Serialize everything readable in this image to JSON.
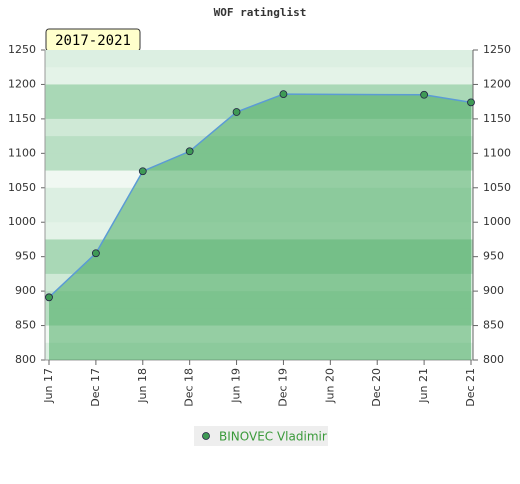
{
  "chart_data": {
    "type": "line",
    "title": "WOF ratinglist",
    "badge": "2017-2021",
    "categories": [
      "Jun 17",
      "Dec 17",
      "Jun 18",
      "Dec 18",
      "Jun 19",
      "Dec 19",
      "Jun 20",
      "Dec 20",
      "Jun 21",
      "Dec 21"
    ],
    "series": [
      {
        "name": "BINOVEC Vladimir",
        "color": "#5b9bd5",
        "marker_color": "#3f9a55",
        "values": [
          891,
          955,
          1074,
          1103,
          1160,
          1186,
          null,
          null,
          1185,
          1174
        ]
      }
    ],
    "connect_gaps": true,
    "area_color": "#4aab62",
    "ylim": [
      800,
      1250
    ],
    "yticks": [
      800,
      850,
      900,
      950,
      1000,
      1050,
      1100,
      1150,
      1200,
      1250
    ],
    "right_axis": true,
    "legend": "bottom"
  }
}
